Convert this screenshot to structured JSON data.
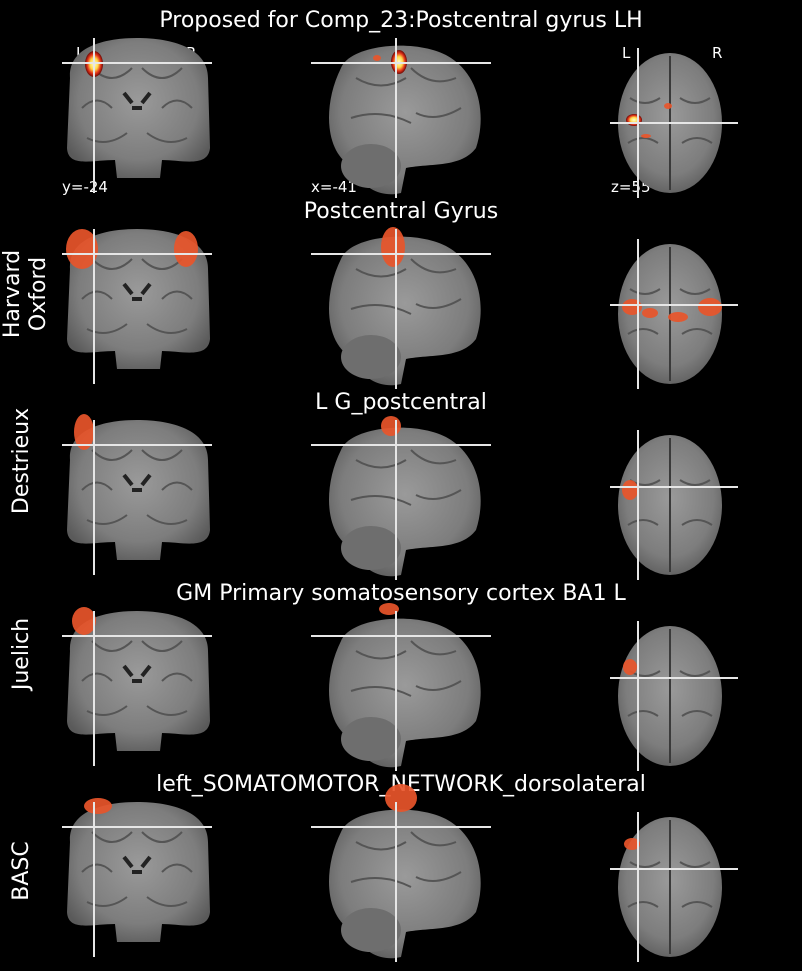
{
  "figure": {
    "header_title": "Proposed for Comp_23:Postcentral gyrus LH",
    "coords": {
      "y": "y=-24",
      "x": "x=-41",
      "z": "z=55"
    },
    "orientation": {
      "left": "L",
      "right": "R"
    },
    "colors": {
      "background": "#000000",
      "crosshair": "#e6e6e6",
      "overlay": "#e8552a",
      "hot": "#ffd94a"
    }
  },
  "rows": [
    {
      "atlas": "",
      "region": "Proposed for Comp_23:Postcentral gyrus LH"
    },
    {
      "atlas": "Harvard Oxford",
      "atlas_line1": "Harvard",
      "atlas_line2": "Oxford",
      "region": "Postcentral Gyrus"
    },
    {
      "atlas": "Destrieux",
      "region": "L G_postcentral"
    },
    {
      "atlas": "Juelich",
      "region": "GM Primary somatosensory cortex BA1 L"
    },
    {
      "atlas": "BASC",
      "region": "left_SOMATOMOTOR_NETWORK_dorsolateral"
    }
  ]
}
